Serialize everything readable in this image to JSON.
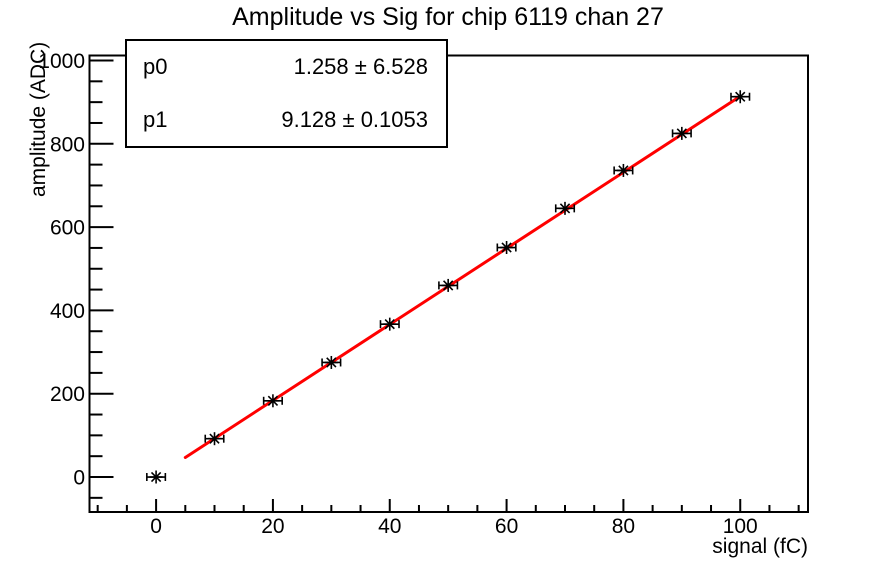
{
  "page": {
    "background_color": "#ffffff",
    "frame_color": "#000000"
  },
  "title": "Amplitude vs Sig for chip 6119 chan 27",
  "stats_box": {
    "rows": [
      {
        "name": "p0",
        "value": "1.258 ± 6.528"
      },
      {
        "name": "p1",
        "value": "9.128 ± 0.1053"
      }
    ]
  },
  "chart_data": {
    "type": "scatter",
    "title": "Amplitude vs Sig for chip 6119 chan 27",
    "xlabel": "signal (fC)",
    "ylabel": "amplitude (ADC)",
    "x": [
      0,
      10,
      20,
      30,
      40,
      50,
      60,
      70,
      80,
      90,
      100
    ],
    "y": [
      0,
      92,
      183,
      275,
      367,
      460,
      551,
      645,
      736,
      825,
      913
    ],
    "x_error": 1.5,
    "marker": "asterisk",
    "marker_color": "#000000",
    "xlim": [
      -11.4,
      111.6
    ],
    "ylim": [
      -84,
      1012
    ],
    "x_major_ticks": [
      0,
      20,
      40,
      60,
      80,
      100
    ],
    "x_tick_labels": [
      "0",
      "20",
      "40",
      "60",
      "80",
      "100"
    ],
    "x_minor_step": 5,
    "y_major_ticks": [
      0,
      200,
      400,
      600,
      800,
      1000
    ],
    "y_tick_labels": [
      "0",
      "200",
      "400",
      "600",
      "800",
      "1000"
    ],
    "y_minor_step": 50,
    "grid": false,
    "legend": "none",
    "fit": {
      "type": "linear",
      "p0": 1.258,
      "p0_err": 6.528,
      "p1": 9.128,
      "p1_err": 0.1053,
      "x_range": [
        5,
        100
      ],
      "color": "#ff0000"
    }
  }
}
